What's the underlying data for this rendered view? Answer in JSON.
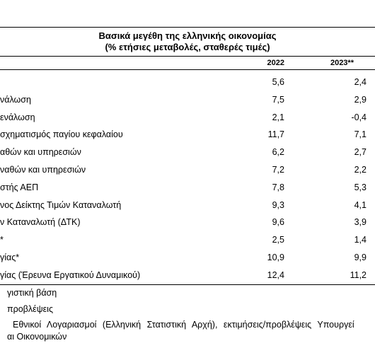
{
  "table": {
    "title": [
      "Βασικά μεγέθη της ελληνικής οικονομίας",
      "(% ετήσιες μεταβολές, σταθερές τιμές)"
    ],
    "header": [
      "2022",
      "2023**"
    ],
    "rows": [
      {
        "values": [
          "5,6",
          "2,4"
        ]
      },
      {
        "label": "νάλωση",
        "values": [
          "7,5",
          "2,9"
        ]
      },
      {
        "label": "ενάλωση",
        "values": [
          "2,1",
          "-0,4"
        ]
      },
      {
        "label": "σχηματισμός παγίου κεφαλαίου",
        "values": [
          "11,7",
          "7,1"
        ]
      },
      {
        "label": "αθών και υπηρεσιών",
        "values": [
          "6,2",
          "2,7"
        ]
      },
      {
        "label": "ναθών και υπηρεσιών",
        "values": [
          "7,2",
          "2,2"
        ]
      },
      {
        "label": "στής ΑΕΠ",
        "values": [
          "7,8",
          "5,3"
        ]
      },
      {
        "label": "νος Δείκτης Τιμών Καταναλωτή",
        "values": [
          "9,3",
          "4,1"
        ]
      },
      {
        "label": "ν Καταναλωτή (ΔΤΚ)",
        "values": [
          "9,6",
          "3,9"
        ]
      },
      {
        "label": "*",
        "values": [
          "2,5",
          "1,4"
        ]
      },
      {
        "label": "γίας*",
        "values": [
          "10,9",
          "9,9"
        ]
      },
      {
        "label": "γίας (Έρευνα Εργατικού Δυναμικού)",
        "values": [
          "12,4",
          "11,2"
        ]
      }
    ],
    "footnotes": [
      "γιστική βάση",
      "προβλέψεις",
      "Εθνικοί Λογαριασμοί (Ελληνική Στατιστική Αρχή), εκτιμήσεις/προβλέψεις Υπουργεί",
      "αι Οικονομικών"
    ]
  }
}
